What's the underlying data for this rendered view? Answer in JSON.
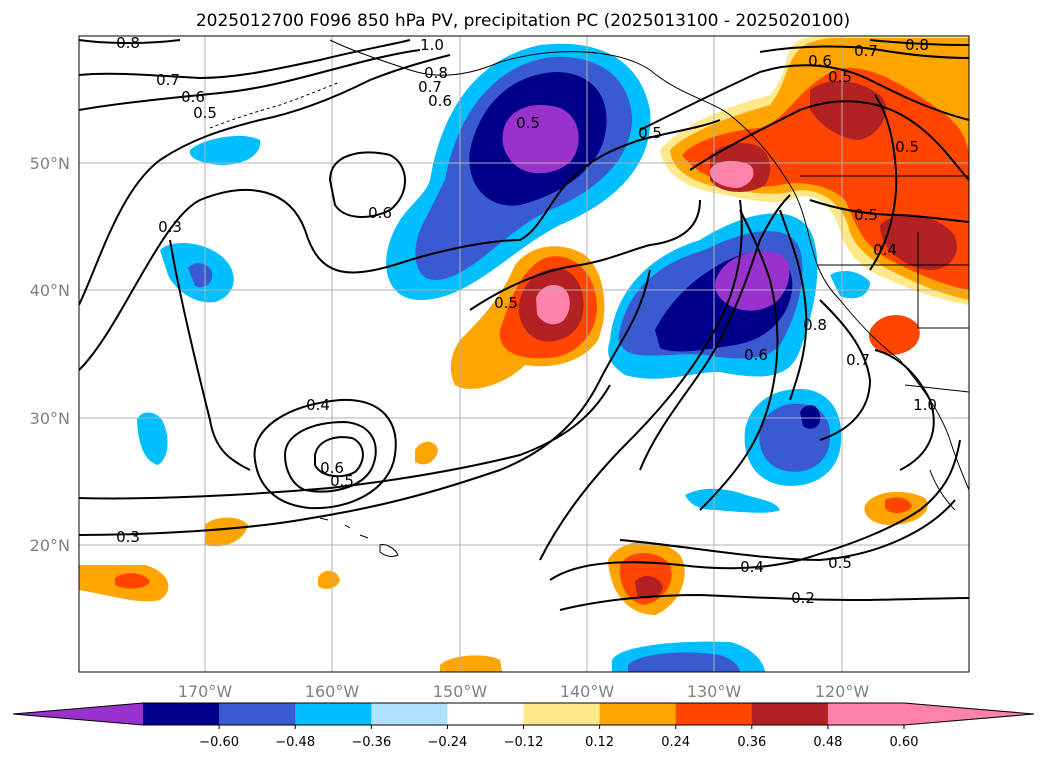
{
  "title": "2025012700 F096 850 hPa PV, precipitation PC (2025013100 - 2025020100)",
  "map": {
    "lat_ticks": [
      "50°N",
      "40°N",
      "30°N",
      "20°N"
    ],
    "lon_ticks": [
      "170°W",
      "160°W",
      "150°W",
      "140°W",
      "130°W",
      "120°W"
    ]
  },
  "contour_labels": [
    "0.8",
    "1.0",
    "0.8",
    "0.7",
    "0.7",
    "0.6",
    "0.5",
    "0.6",
    "0.5",
    "0.5",
    "0.6",
    "0.7",
    "0.8",
    "0.6",
    "0.5",
    "0.5",
    "0.5",
    "0.4",
    "0.3",
    "0.5",
    "0.4",
    "0.6",
    "0.5",
    "0.3",
    "0.6",
    "0.8",
    "0.7",
    "1.0",
    "0.4",
    "0.5",
    "0.2"
  ],
  "colorbar": {
    "ticks": [
      "−0.60",
      "−0.48",
      "−0.36",
      "−0.24",
      "−0.12",
      "0.12",
      "0.24",
      "0.36",
      "0.48",
      "0.60"
    ],
    "colors": [
      "#9932cc",
      "#00008b",
      "#3a5bd0",
      "#00bfff",
      "#b0e2ff",
      "#ffffff",
      "#ffe88a",
      "#ffa500",
      "#ff4500",
      "#b22222",
      "#ff82ab",
      "#ff82ab"
    ]
  }
}
